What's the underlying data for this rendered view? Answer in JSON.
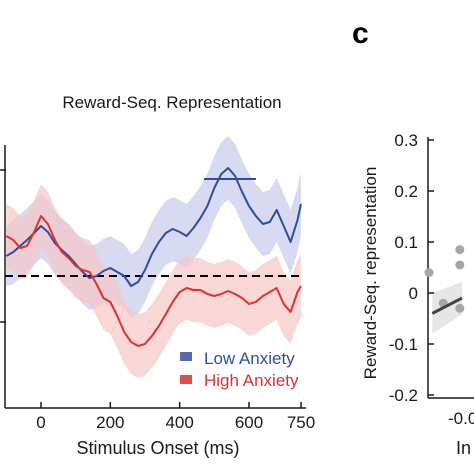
{
  "chart_data": [
    {
      "type": "line",
      "title": "Reward-Seq. Representation",
      "xlabel": "Stimulus Onset (ms)",
      "ylabel": "",
      "xlim": [
        -100,
        760
      ],
      "x_ticks": [
        0,
        200,
        400,
        600,
        750
      ],
      "x_tick_labels": [
        "0",
        "200",
        "400",
        "600",
        "750"
      ],
      "baseline_dashed": true,
      "significance_bar": {
        "x_start": 470,
        "x_end": 620,
        "series": "Low Anxiety"
      },
      "legend": {
        "position": "bottom-right",
        "entries": [
          "Low Anxiety",
          "High Anxiety"
        ]
      },
      "colors": {
        "Low Anxiety": "#2e4e9e",
        "High Anxiety": "#e03030",
        "Low Anxiety band": "#c9cdec",
        "High Anxiety band": "#f6c6c6"
      },
      "series": [
        {
          "name": "Low Anxiety",
          "x": [
            -100,
            -80,
            -60,
            -40,
            -20,
            0,
            20,
            40,
            60,
            80,
            100,
            120,
            140,
            160,
            180,
            200,
            220,
            240,
            260,
            280,
            300,
            320,
            340,
            360,
            380,
            400,
            420,
            440,
            460,
            480,
            500,
            520,
            540,
            560,
            580,
            600,
            620,
            640,
            660,
            680,
            700,
            720,
            740,
            750
          ],
          "values": [
            0.02,
            0.024,
            0.03,
            0.036,
            0.043,
            0.05,
            0.044,
            0.033,
            0.026,
            0.02,
            0.012,
            0.004,
            -0.002,
            0.0,
            0.005,
            0.008,
            0.004,
            0.0,
            -0.01,
            -0.006,
            0.006,
            0.022,
            0.034,
            0.043,
            0.047,
            0.044,
            0.04,
            0.048,
            0.058,
            0.07,
            0.088,
            0.102,
            0.108,
            0.1,
            0.084,
            0.07,
            0.06,
            0.052,
            0.054,
            0.066,
            0.05,
            0.034,
            0.056,
            0.072
          ],
          "ci_low": [
            -0.01,
            -0.008,
            -0.002,
            0.004,
            0.011,
            0.018,
            0.012,
            0.001,
            -0.006,
            -0.012,
            -0.02,
            -0.028,
            -0.034,
            -0.032,
            -0.027,
            -0.024,
            -0.028,
            -0.032,
            -0.042,
            -0.038,
            -0.026,
            -0.01,
            0.002,
            0.011,
            0.015,
            0.012,
            0.008,
            0.016,
            0.026,
            0.038,
            0.056,
            0.07,
            0.076,
            0.068,
            0.052,
            0.038,
            0.028,
            0.02,
            0.022,
            0.034,
            0.018,
            0.002,
            0.024,
            0.04
          ],
          "ci_high": [
            0.05,
            0.056,
            0.062,
            0.068,
            0.075,
            0.082,
            0.076,
            0.065,
            0.058,
            0.052,
            0.044,
            0.036,
            0.03,
            0.032,
            0.037,
            0.04,
            0.036,
            0.032,
            0.022,
            0.026,
            0.038,
            0.054,
            0.066,
            0.075,
            0.079,
            0.076,
            0.072,
            0.08,
            0.09,
            0.102,
            0.12,
            0.134,
            0.14,
            0.132,
            0.116,
            0.102,
            0.092,
            0.084,
            0.086,
            0.098,
            0.082,
            0.066,
            0.088,
            0.104
          ]
        },
        {
          "name": "High Anxiety",
          "x": [
            -100,
            -80,
            -60,
            -40,
            -20,
            0,
            20,
            40,
            60,
            80,
            100,
            120,
            140,
            160,
            180,
            200,
            220,
            240,
            260,
            280,
            300,
            320,
            340,
            360,
            380,
            400,
            420,
            440,
            460,
            480,
            500,
            520,
            540,
            560,
            580,
            600,
            620,
            640,
            660,
            680,
            700,
            720,
            740,
            750
          ],
          "values": [
            0.04,
            0.036,
            0.028,
            0.03,
            0.044,
            0.06,
            0.052,
            0.036,
            0.024,
            0.018,
            0.01,
            0.006,
            0.004,
            -0.008,
            -0.022,
            -0.026,
            -0.04,
            -0.056,
            -0.066,
            -0.07,
            -0.068,
            -0.06,
            -0.05,
            -0.038,
            -0.026,
            -0.016,
            -0.012,
            -0.014,
            -0.014,
            -0.018,
            -0.02,
            -0.018,
            -0.015,
            -0.018,
            -0.022,
            -0.028,
            -0.026,
            -0.02,
            -0.016,
            -0.012,
            -0.028,
            -0.036,
            -0.016,
            -0.01
          ],
          "ci_low": [
            0.008,
            0.004,
            -0.004,
            -0.002,
            0.012,
            0.028,
            0.02,
            0.004,
            -0.008,
            -0.014,
            -0.022,
            -0.026,
            -0.028,
            -0.04,
            -0.054,
            -0.058,
            -0.072,
            -0.088,
            -0.098,
            -0.102,
            -0.1,
            -0.092,
            -0.082,
            -0.07,
            -0.058,
            -0.048,
            -0.044,
            -0.046,
            -0.046,
            -0.05,
            -0.052,
            -0.05,
            -0.047,
            -0.05,
            -0.054,
            -0.06,
            -0.058,
            -0.052,
            -0.048,
            -0.044,
            -0.06,
            -0.068,
            -0.048,
            -0.042
          ],
          "ci_high": [
            0.072,
            0.068,
            0.06,
            0.062,
            0.076,
            0.092,
            0.084,
            0.068,
            0.056,
            0.05,
            0.042,
            0.038,
            0.036,
            0.024,
            0.01,
            0.006,
            -0.008,
            -0.024,
            -0.034,
            -0.038,
            -0.036,
            -0.028,
            -0.018,
            -0.006,
            0.006,
            0.016,
            0.02,
            0.018,
            0.018,
            0.014,
            0.012,
            0.014,
            0.017,
            0.014,
            0.01,
            0.004,
            0.006,
            0.012,
            0.016,
            0.02,
            0.004,
            -0.004,
            0.016,
            0.022
          ]
        }
      ]
    },
    {
      "type": "scatter",
      "panel_label": "c",
      "ylabel": "Reward-Seq. representation",
      "xlabel": "In",
      "ylim": [
        -0.2,
        0.3
      ],
      "y_ticks": [
        -0.2,
        -0.1,
        0,
        0.1,
        0.2,
        0.3
      ],
      "y_tick_labels": [
        "-0.2",
        "-0.1",
        "0",
        "0.1",
        "0.2",
        "0.3"
      ],
      "x_tick_labels": [
        "-0.0"
      ],
      "points_visible": [
        {
          "x": -0.3,
          "y": 0.04
        },
        {
          "x": -0.17,
          "y": -0.02
        },
        {
          "x": -0.02,
          "y": -0.03
        },
        {
          "x": -0.02,
          "y": 0.085
        },
        {
          "x": -0.02,
          "y": 0.055
        }
      ],
      "fit_line": {
        "x": [
          -0.27,
          0.0
        ],
        "y": [
          -0.04,
          -0.01
        ]
      },
      "colors": {
        "points": "#a6a6a6",
        "fit": "#404040",
        "band": "#e6e6e6"
      }
    }
  ]
}
